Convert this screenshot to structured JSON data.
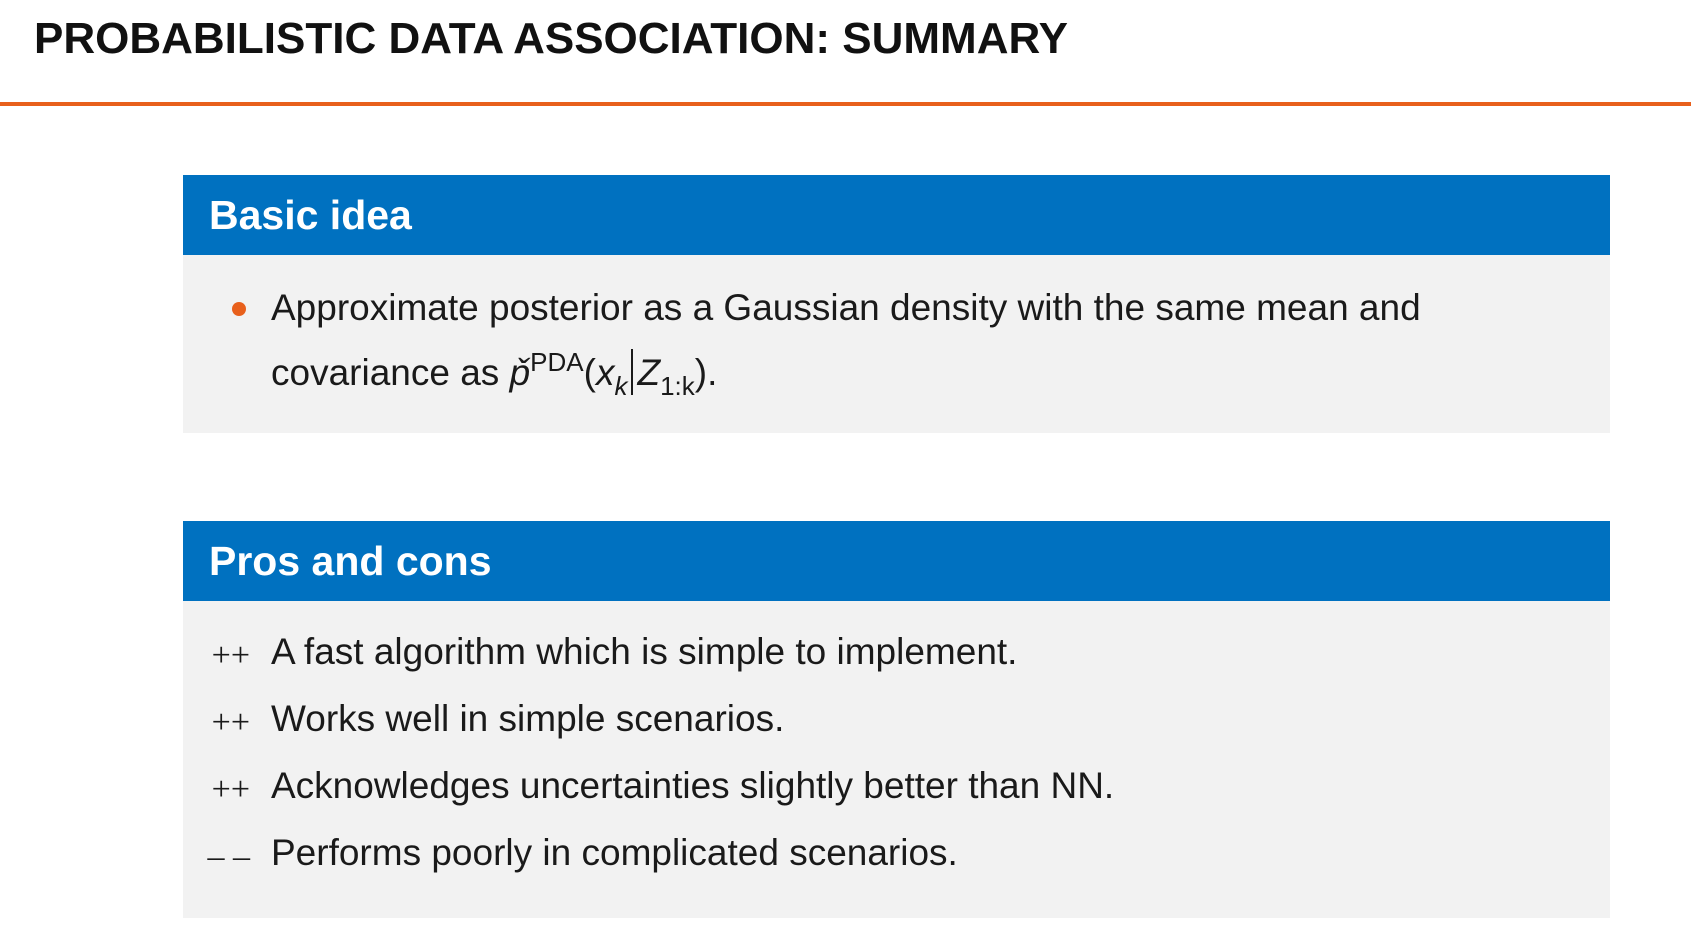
{
  "slide": {
    "title": "PROBABILISTIC DATA ASSOCIATION: SUMMARY"
  },
  "colors": {
    "accent": "#e8601c",
    "block_header": "#0071c0",
    "block_body": "#f2f2f2"
  },
  "basic_idea": {
    "header": "Basic idea",
    "bullet_text": "Approximate posterior as a Gaussian density with the same mean and covariance as",
    "math": {
      "p_symbol": "p̌",
      "superscript": "PDA",
      "open_paren": "(",
      "x": "x",
      "x_sub": "k",
      "z": "Z",
      "z_sub": "1:k",
      "close_paren": ").",
      "bar": "|"
    }
  },
  "pros_cons": {
    "header": "Pros and cons",
    "items": [
      {
        "symbol": "++",
        "text": "A fast algorithm which is simple to implement."
      },
      {
        "symbol": "++",
        "text": "Works well in simple scenarios."
      },
      {
        "symbol": "++",
        "text": "Acknowledges uncertainties slightly better than NN."
      },
      {
        "symbol": "– –",
        "text": "Performs poorly in complicated scenarios."
      }
    ]
  }
}
